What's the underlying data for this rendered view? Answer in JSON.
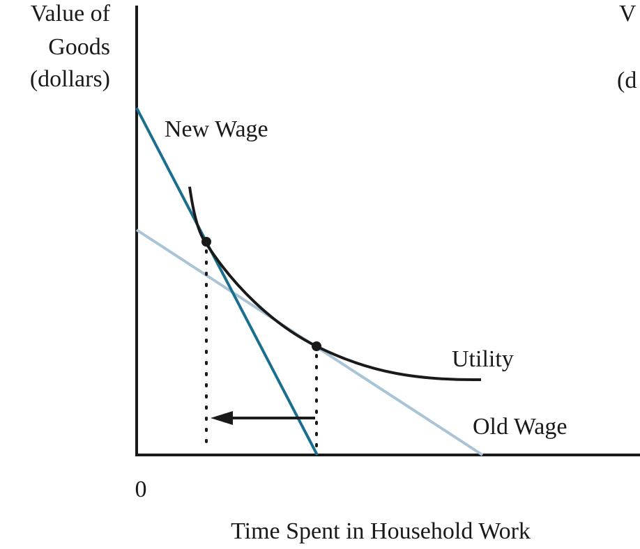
{
  "y_axis_label": [
    "Value of",
    "Goods",
    "(dollars)"
  ],
  "x_axis_label": "Time Spent in Household Work",
  "origin_label": "0",
  "curve_labels": {
    "new_wage": "New Wage",
    "utility": "Utility",
    "old_wage": "Old Wage"
  },
  "cropped_right_label": [
    "V",
    "(d"
  ]
}
